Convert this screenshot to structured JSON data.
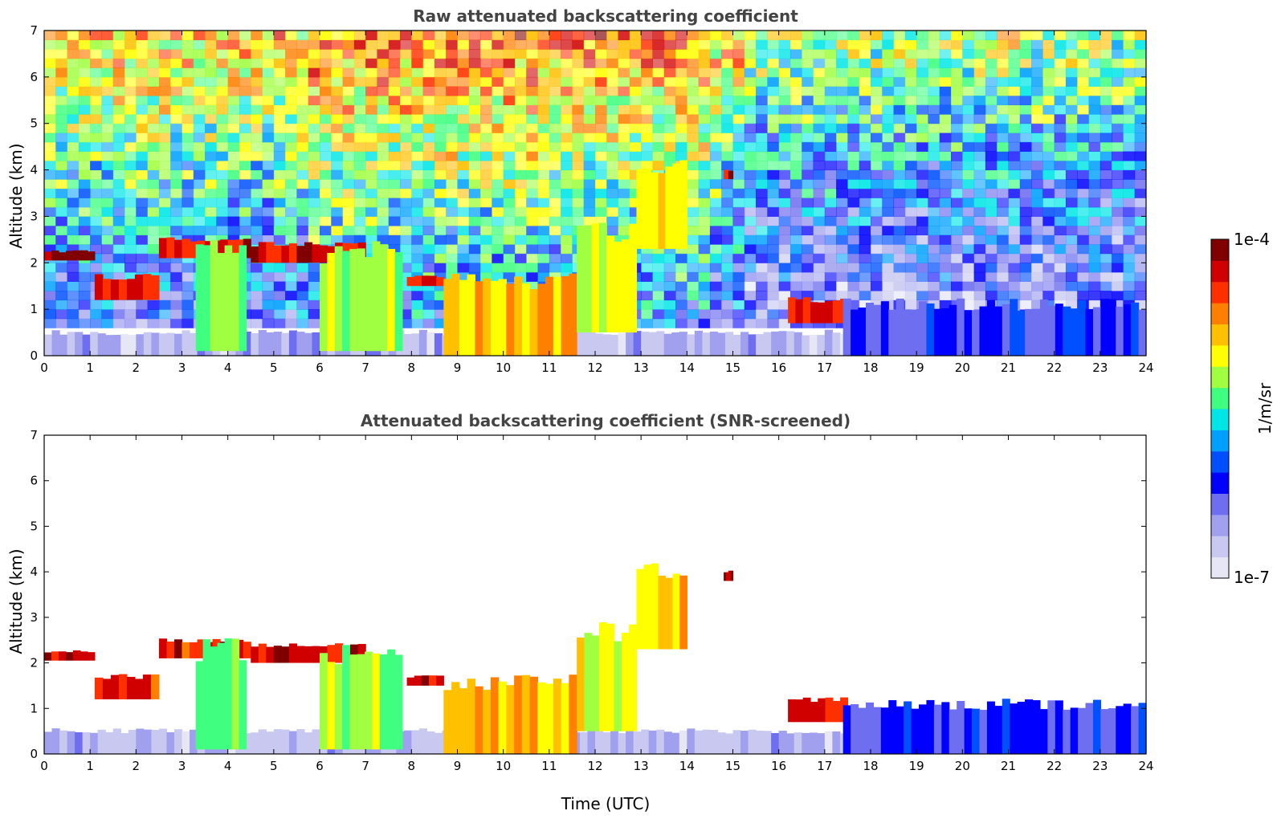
{
  "chart_data": [
    {
      "type": "heatmap",
      "title": "Raw attenuated backscattering coefficient",
      "xlabel": "",
      "ylabel": "Altitude (km)",
      "xlim": [
        0,
        24
      ],
      "ylim": [
        0,
        7
      ],
      "x_ticks": [
        "0",
        "1",
        "2",
        "3",
        "4",
        "5",
        "6",
        "7",
        "8",
        "9",
        "10",
        "11",
        "12",
        "13",
        "14",
        "15",
        "16",
        "17",
        "18",
        "19",
        "20",
        "21",
        "22",
        "23",
        "24"
      ],
      "y_ticks": [
        "0",
        "1",
        "2",
        "3",
        "4",
        "5",
        "6",
        "7"
      ],
      "noise_profile": [
        {
          "x": 0,
          "noise_top": 1.0
        },
        {
          "x": 6,
          "noise_top": 0.9
        },
        {
          "x": 9,
          "noise_top": 0.6
        },
        {
          "x": 15,
          "noise_top": 0.7
        },
        {
          "x": 24,
          "noise_top": 0.4
        }
      ],
      "features": [
        {
          "name": "boundary layer",
          "x": [
            0,
            24
          ],
          "y": [
            0,
            0.5
          ],
          "level": 0.1
        },
        {
          "name": "cloud layer",
          "x": [
            0,
            1.1
          ],
          "y": [
            2.05,
            2.25
          ],
          "level": 0.95
        },
        {
          "name": "cloud layer",
          "x": [
            1.1,
            2.5
          ],
          "y": [
            1.2,
            1.7
          ],
          "level": 0.9
        },
        {
          "name": "cloud layer",
          "x": [
            2.5,
            4.5
          ],
          "y": [
            2.1,
            2.5
          ],
          "level": 0.9
        },
        {
          "name": "cloud layer",
          "x": [
            4.5,
            7.0
          ],
          "y": [
            2.0,
            2.4
          ],
          "level": 0.95
        },
        {
          "name": "aerosol plume",
          "x": [
            3.3,
            4.4
          ],
          "y": [
            0.1,
            2.3
          ],
          "level": 0.55
        },
        {
          "name": "aerosol plume",
          "x": [
            6.0,
            7.8
          ],
          "y": [
            0.1,
            2.2
          ],
          "level": 0.6
        },
        {
          "name": "cloud layer",
          "x": [
            7.9,
            8.7
          ],
          "y": [
            1.5,
            1.7
          ],
          "level": 0.95
        },
        {
          "name": "aerosol plume",
          "x": [
            8.7,
            11.6
          ],
          "y": [
            0.0,
            1.6
          ],
          "level": 0.75
        },
        {
          "name": "aerosol plume",
          "x": [
            11.6,
            12.9
          ],
          "y": [
            0.5,
            2.7
          ],
          "level": 0.65
        },
        {
          "name": "aerosol plume",
          "x": [
            12.9,
            14.0
          ],
          "y": [
            2.3,
            4.0
          ],
          "level": 0.7
        },
        {
          "name": "cloud layer",
          "x": [
            14.8,
            15.0
          ],
          "y": [
            3.8,
            4.0
          ],
          "level": 0.95
        },
        {
          "name": "cloud layer",
          "x": [
            16.2,
            17.5
          ],
          "y": [
            0.7,
            1.2
          ],
          "level": 0.9
        },
        {
          "name": "aerosol plume",
          "x": [
            17.4,
            24
          ],
          "y": [
            0.0,
            1.1
          ],
          "level": 0.25
        }
      ]
    },
    {
      "type": "heatmap",
      "title": "Attenuated backscattering coefficient (SNR-screened)",
      "xlabel": "Time (UTC)",
      "ylabel": "Altitude (km)",
      "xlim": [
        0,
        24
      ],
      "ylim": [
        0,
        7
      ],
      "x_ticks": [
        "0",
        "1",
        "2",
        "3",
        "4",
        "5",
        "6",
        "7",
        "8",
        "9",
        "10",
        "11",
        "12",
        "13",
        "14",
        "15",
        "16",
        "17",
        "18",
        "19",
        "20",
        "21",
        "22",
        "23",
        "24"
      ],
      "y_ticks": [
        "0",
        "1",
        "2",
        "3",
        "4",
        "5",
        "6",
        "7"
      ],
      "features": [
        {
          "name": "boundary layer",
          "x": [
            0,
            24
          ],
          "y": [
            0,
            0.5
          ],
          "level": 0.1
        },
        {
          "name": "cloud layer",
          "x": [
            0,
            1.1
          ],
          "y": [
            2.05,
            2.25
          ],
          "level": 0.95
        },
        {
          "name": "cloud layer",
          "x": [
            1.1,
            2.5
          ],
          "y": [
            1.2,
            1.7
          ],
          "level": 0.9
        },
        {
          "name": "cloud layer",
          "x": [
            2.5,
            4.5
          ],
          "y": [
            2.1,
            2.5
          ],
          "level": 0.9
        },
        {
          "name": "cloud layer",
          "x": [
            4.5,
            7.0
          ],
          "y": [
            2.0,
            2.4
          ],
          "level": 0.95
        },
        {
          "name": "aerosol plume",
          "x": [
            3.3,
            4.4
          ],
          "y": [
            0.1,
            2.3
          ],
          "level": 0.55
        },
        {
          "name": "aerosol plume",
          "x": [
            6.0,
            7.8
          ],
          "y": [
            0.1,
            2.2
          ],
          "level": 0.6
        },
        {
          "name": "cloud layer",
          "x": [
            7.9,
            8.7
          ],
          "y": [
            1.5,
            1.7
          ],
          "level": 0.95
        },
        {
          "name": "aerosol plume",
          "x": [
            8.7,
            11.6
          ],
          "y": [
            0.0,
            1.6
          ],
          "level": 0.75
        },
        {
          "name": "aerosol plume",
          "x": [
            11.6,
            12.9
          ],
          "y": [
            0.5,
            2.7
          ],
          "level": 0.65
        },
        {
          "name": "aerosol plume",
          "x": [
            12.9,
            14.0
          ],
          "y": [
            2.3,
            4.0
          ],
          "level": 0.7
        },
        {
          "name": "cloud layer",
          "x": [
            14.8,
            15.0
          ],
          "y": [
            3.8,
            4.0
          ],
          "level": 0.95
        },
        {
          "name": "cloud layer",
          "x": [
            16.2,
            17.5
          ],
          "y": [
            0.7,
            1.2
          ],
          "level": 0.9
        },
        {
          "name": "aerosol plume",
          "x": [
            17.4,
            24
          ],
          "y": [
            0.0,
            1.1
          ],
          "level": 0.25
        }
      ]
    }
  ],
  "colorbar": {
    "max_label": "1e-4",
    "min_label": "1e-7",
    "unit_label": "1/m/sr",
    "colors": [
      "#e6e6f5",
      "#c8c8f0",
      "#a0a0ee",
      "#6e6ef0",
      "#0000ff",
      "#0050ff",
      "#00a0ff",
      "#00e6e6",
      "#40ff80",
      "#a0ff40",
      "#ffff00",
      "#ffc000",
      "#ff8000",
      "#ff3000",
      "#d00000",
      "#800000"
    ]
  }
}
